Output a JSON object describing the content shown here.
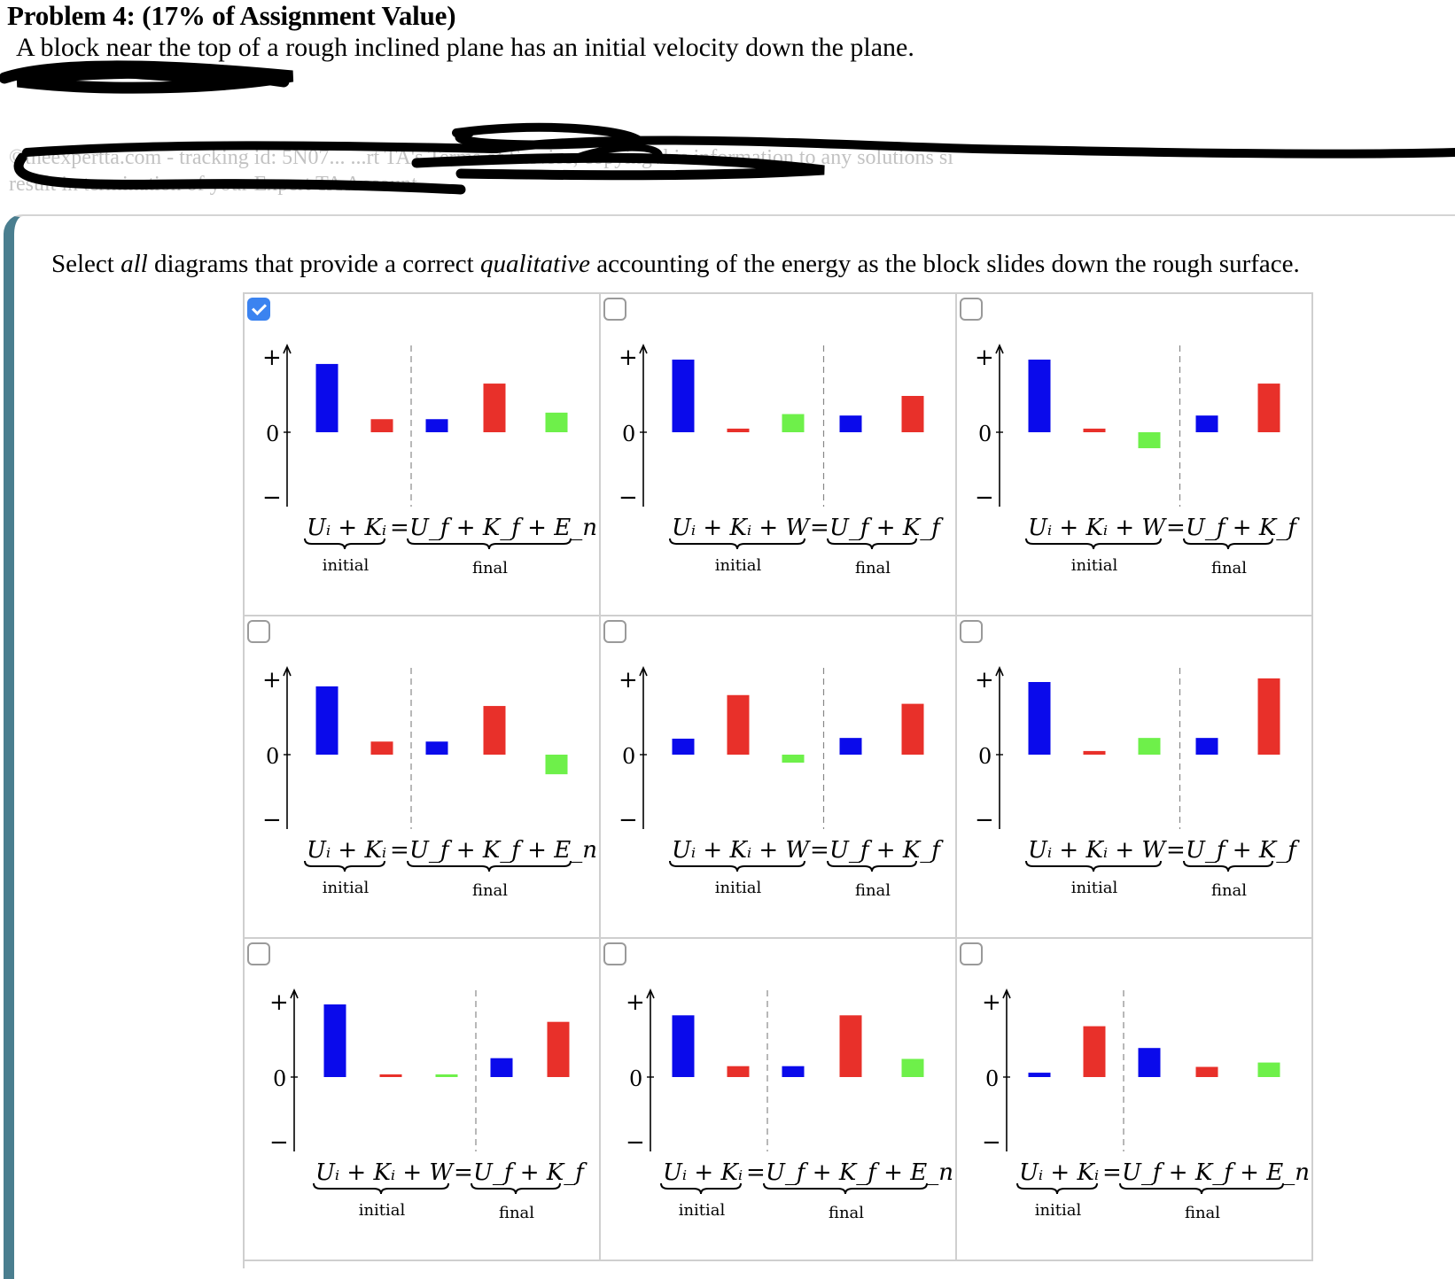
{
  "header": {
    "title": "Problem 4: (17% of Assignment Value)",
    "intro": "A block near the top of a rough inclined plane has an initial velocity down the plane.",
    "faded_line1": "©theexpertta.com - tracking id: 5N07...                           ...rt TA's Terms of Service, copying this information to any solutions si",
    "faded_line2": "result in termination of your Expert TA Account."
  },
  "question": {
    "prefix": "Select ",
    "all": "all",
    "middle": " diagrams that provide a correct ",
    "qualitative": "qualitative",
    "suffix": " accounting of the energy as the block slides down the rough surface."
  },
  "labels": {
    "plus": "+",
    "zero": "0",
    "minus": "−",
    "initial": "initial",
    "final": "final"
  },
  "colors": {
    "U": "#0a0aeb",
    "K": "#e8302a",
    "third": "#6ef04a",
    "checkbox_accent": "#3b83f0",
    "side_rule": "#4a7e8f"
  },
  "options": [
    {
      "checked": true,
      "kind": "Enc",
      "lhs": "Uᵢ + Kᵢ",
      "eq": "=",
      "rhs": "U_f + K_f + E_n.c.",
      "bars": [
        0.94,
        0.18,
        0.18,
        0.67,
        0.27
      ],
      "split": 2
    },
    {
      "checked": false,
      "kind": "W",
      "lhs": "Uᵢ + Kᵢ + W",
      "eq": "=",
      "rhs": "U_f + K_f",
      "bars": [
        1.0,
        0.05,
        0.25,
        0.23,
        0.5
      ],
      "split": 3
    },
    {
      "checked": false,
      "kind": "W",
      "lhs": "Uᵢ + Kᵢ + W",
      "eq": "=",
      "rhs": "U_f + K_f",
      "bars": [
        1.0,
        0.05,
        -0.22,
        0.23,
        0.67
      ],
      "split": 3
    },
    {
      "checked": false,
      "kind": "Enc",
      "lhs": "Uᵢ + Kᵢ",
      "eq": "=",
      "rhs": "U_f + K_f + E_n.c.",
      "bars": [
        0.94,
        0.18,
        0.18,
        0.67,
        -0.27
      ],
      "split": 2
    },
    {
      "checked": false,
      "kind": "W",
      "lhs": "Uᵢ + Kᵢ + W",
      "eq": "=",
      "rhs": "U_f + K_f",
      "bars": [
        0.22,
        0.82,
        -0.11,
        0.23,
        0.7
      ],
      "split": 3
    },
    {
      "checked": false,
      "kind": "W",
      "lhs": "Uᵢ + Kᵢ + W",
      "eq": "=",
      "rhs": "U_f + K_f",
      "bars": [
        1.0,
        0.05,
        0.23,
        0.23,
        1.05
      ],
      "split": 3
    },
    {
      "checked": false,
      "kind": "W",
      "lhs": "Uᵢ + Kᵢ + W",
      "eq": "=",
      "rhs": "U_f + K_f",
      "bars": [
        1.0,
        0.01,
        0.01,
        0.26,
        0.76
      ],
      "split": 3
    },
    {
      "checked": false,
      "kind": "Enc",
      "lhs": "Uᵢ + Kᵢ",
      "eq": "=",
      "rhs": "U_f + K_f + E_n.c.",
      "bars": [
        0.85,
        0.15,
        0.15,
        0.85,
        0.25
      ],
      "split": 2
    },
    {
      "checked": false,
      "kind": "Enc",
      "lhs": "Uᵢ + Kᵢ",
      "eq": "=",
      "rhs": "U_f + K_f + E_n.c.",
      "bars": [
        0.06,
        0.7,
        0.4,
        0.14,
        0.2
      ],
      "split": 2
    }
  ]
}
